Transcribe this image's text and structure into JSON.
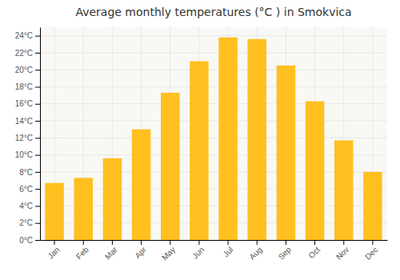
{
  "chart_data": {
    "type": "bar",
    "title": "Average monthly temperatures (°C ) in Smokvica",
    "categories": [
      "Jan",
      "Feb",
      "Mar",
      "Apr",
      "May",
      "Jun",
      "Jul",
      "Aug",
      "Sep",
      "Oct",
      "Nov",
      "Dec"
    ],
    "values": [
      6.7,
      7.3,
      9.6,
      13.0,
      17.3,
      21.0,
      23.8,
      23.6,
      20.5,
      16.3,
      11.7,
      8.0
    ],
    "color": "#FFC020",
    "ylim": [
      0,
      25
    ],
    "yticks": [
      {
        "value": 0,
        "label": "0°C"
      },
      {
        "value": 2,
        "label": "2°C"
      },
      {
        "value": 4,
        "label": "4°C"
      },
      {
        "value": 6,
        "label": "6°C"
      },
      {
        "value": 8,
        "label": "8°C"
      },
      {
        "value": 10,
        "label": "10°C"
      },
      {
        "value": 12,
        "label": "12°C"
      },
      {
        "value": 14,
        "label": "14°C"
      },
      {
        "value": 16,
        "label": "16°C"
      },
      {
        "value": 18,
        "label": "18°C"
      },
      {
        "value": 20,
        "label": "20°C"
      },
      {
        "value": 22,
        "label": "22°C"
      },
      {
        "value": 24,
        "label": "24°C"
      }
    ],
    "grid": true
  }
}
